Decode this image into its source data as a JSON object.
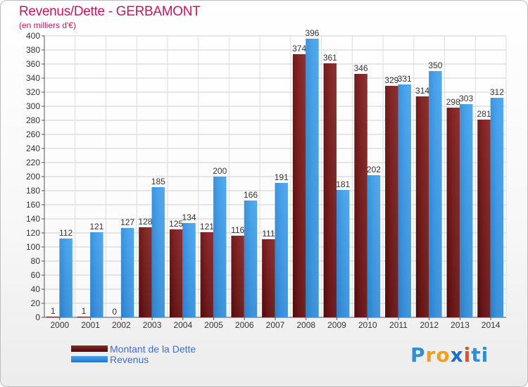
{
  "title": "Revenus/Dette - GERBAMONT",
  "subtitle": "(en milliers d'€)",
  "colors": {
    "dette": "#7a1f1f",
    "revenus": "#3f96e0",
    "title": "#c2185b",
    "legend_text": "#3f6ec8"
  },
  "legend": {
    "dette": "Montant de la Dette",
    "revenus": "Revenus"
  },
  "logo": {
    "text": "Proxiti",
    "letters": [
      "P",
      "r",
      "o",
      "x",
      "i",
      "t",
      "i"
    ],
    "colors": [
      "#2f8ed8",
      "#f0a020",
      "#f0a020",
      "#1a73c8",
      "#e84a2e",
      "#2f8ed8",
      "#2f8ed8"
    ]
  },
  "chart_data": {
    "type": "bar",
    "title": "Revenus/Dette - GERBAMONT",
    "ylabel": "(en milliers d'€)",
    "categories": [
      "2000",
      "2001",
      "2002",
      "2003",
      "2004",
      "2005",
      "2006",
      "2007",
      "2008",
      "2009",
      "2010",
      "2011",
      "2012",
      "2013",
      "2014"
    ],
    "series": [
      {
        "name": "Montant de la Dette",
        "values": [
          1,
          1,
          0,
          128,
          125,
          121,
          116,
          111,
          374,
          361,
          346,
          329,
          314,
          298,
          281
        ]
      },
      {
        "name": "Revenus",
        "values": [
          112,
          121,
          127,
          185,
          134,
          200,
          166,
          191,
          396,
          181,
          202,
          331,
          350,
          303,
          312
        ]
      }
    ],
    "ylim": [
      0,
      400
    ],
    "yticks": [
      0,
      20,
      40,
      60,
      80,
      100,
      120,
      140,
      160,
      180,
      200,
      220,
      240,
      260,
      280,
      300,
      320,
      340,
      360,
      380,
      400
    ],
    "grid": true,
    "legend_position": "bottom-left"
  }
}
